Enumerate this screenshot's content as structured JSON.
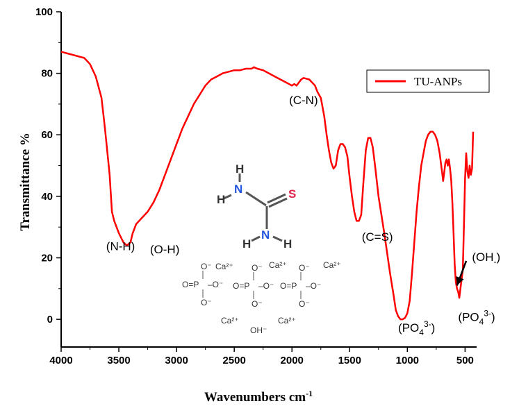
{
  "chart_data": {
    "type": "line",
    "title": "",
    "xlabel": "Wavenumbers cm",
    "xlabel_sup": "-1",
    "ylabel": "Transmittance %",
    "xlim": [
      4000,
      400
    ],
    "ylim": [
      -9,
      100
    ],
    "x_reversed": true,
    "grid": false,
    "legend_position": "top-right",
    "x_ticks": [
      4000,
      3500,
      3000,
      2500,
      2000,
      1500,
      1000,
      500
    ],
    "y_ticks": [
      0,
      20,
      40,
      60,
      80,
      100
    ],
    "series": [
      {
        "name": "TU-ANPs",
        "color": "#ff0000",
        "x": [
          4000,
          3900,
          3800,
          3750,
          3700,
          3650,
          3620,
          3580,
          3560,
          3540,
          3500,
          3460,
          3430,
          3400,
          3380,
          3350,
          3300,
          3250,
          3200,
          3150,
          3100,
          3050,
          3000,
          2950,
          2900,
          2850,
          2800,
          2750,
          2700,
          2650,
          2600,
          2550,
          2500,
          2450,
          2400,
          2350,
          2330,
          2300,
          2250,
          2200,
          2150,
          2100,
          2050,
          2000,
          1980,
          1960,
          1940,
          1920,
          1900,
          1850,
          1800,
          1780,
          1750,
          1720,
          1700,
          1680,
          1660,
          1640,
          1620,
          1600,
          1580,
          1560,
          1540,
          1520,
          1500,
          1480,
          1460,
          1440,
          1420,
          1400,
          1380,
          1360,
          1340,
          1320,
          1300,
          1280,
          1250,
          1200,
          1150,
          1120,
          1100,
          1080,
          1060,
          1040,
          1020,
          1000,
          980,
          960,
          940,
          920,
          900,
          880,
          860,
          840,
          820,
          800,
          780,
          760,
          740,
          720,
          700,
          690,
          680,
          670,
          660,
          650,
          640,
          630,
          620,
          610,
          600,
          590,
          580,
          570,
          560,
          550,
          540,
          530,
          520,
          510,
          500,
          490,
          480,
          470,
          460,
          450,
          440,
          430
        ],
        "values": [
          87,
          86,
          85,
          83,
          79,
          72,
          62,
          47,
          35,
          32,
          28,
          25,
          24,
          25,
          28,
          31,
          33,
          35,
          38,
          42,
          47,
          52,
          57,
          62,
          66,
          70,
          73,
          76,
          78,
          79,
          80,
          80.5,
          81,
          81,
          81.5,
          81.5,
          82,
          81.5,
          81,
          80,
          79,
          78,
          77,
          76,
          76.5,
          76,
          77,
          78,
          78.5,
          78,
          76,
          74,
          72,
          66,
          60,
          55,
          51,
          49,
          50,
          55,
          57,
          57,
          56,
          53,
          46,
          40,
          35,
          32,
          32,
          34,
          45,
          55,
          59,
          59,
          56,
          50,
          40,
          28,
          15,
          8,
          3,
          1,
          0,
          0,
          0.5,
          2,
          6,
          15,
          25,
          35,
          43,
          50,
          54,
          58,
          60,
          61,
          61,
          60,
          58,
          54,
          48,
          45,
          48,
          51,
          52,
          50,
          52,
          49,
          45,
          38,
          28,
          18,
          12,
          10,
          9,
          7,
          10,
          13,
          16,
          30,
          46,
          54,
          48,
          46,
          50,
          47,
          49,
          61
        ]
      }
    ],
    "annotations": [
      {
        "text": "(N-H)",
        "x": 3610,
        "y": 22.5
      },
      {
        "text": "(O-H)",
        "x": 3230,
        "y": 21.5
      },
      {
        "text": "(C-N)",
        "x": 2025,
        "y": 70
      },
      {
        "text": "(C=S)",
        "x": 1395,
        "y": 25.5
      },
      {
        "text": "(PO",
        "sub": "4",
        "sup": "3-",
        "suffix": ")",
        "x": 1080,
        "y": -4
      },
      {
        "text": "(PO",
        "sub": "4",
        "sup": "3-",
        "suffix": ")",
        "x": 560,
        "y": -0.5
      },
      {
        "text": "(OH",
        "sub": "-",
        "suffix": ")",
        "x": 440,
        "y": 19
      }
    ],
    "arrow": {
      "from": [
        490,
        19
      ],
      "to": [
        570,
        11
      ]
    },
    "inset": {
      "thiourea_atoms": [
        "H",
        "N",
        "H",
        "S",
        "N",
        "H",
        "H"
      ],
      "phosphate_groups": [
        {
          "o_top": "O⁻",
          "o_left": "O=P",
          "o_right": "–O⁻",
          "o_bottom": "O⁻"
        },
        {
          "o_top": "O⁻",
          "o_left": "O=P",
          "o_right": "–O⁻",
          "o_bottom": "O⁻"
        },
        {
          "o_top": "O⁻",
          "o_left": "O=P",
          "o_right": "–O⁻",
          "o_bottom": "O⁻"
        }
      ],
      "ions": [
        "Ca²⁺",
        "Ca²⁺",
        "Ca²⁺",
        "Ca²⁺",
        "Ca²⁺",
        "OH⁻"
      ]
    }
  }
}
